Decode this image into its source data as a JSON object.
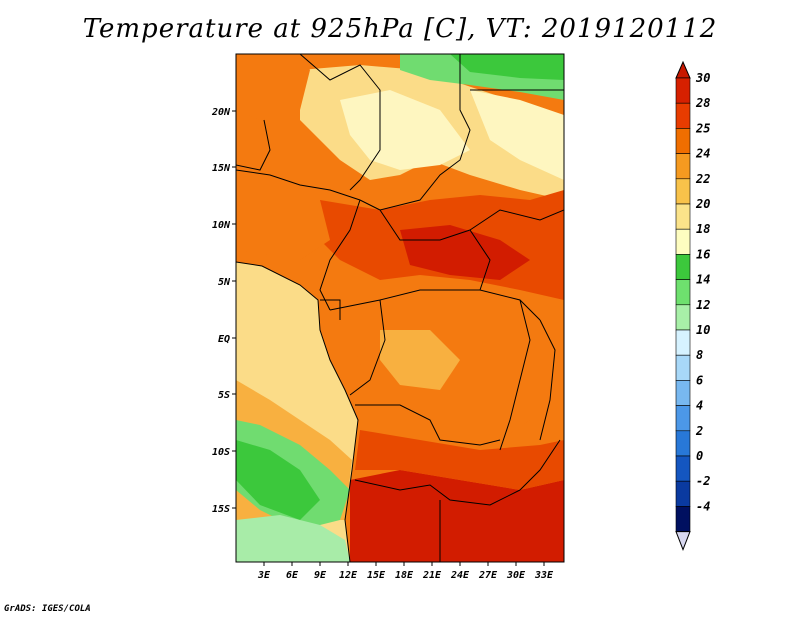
{
  "title": "Temperature at 925hPa [C], VT: 2019120112",
  "credit": "GrADS: IGES/COLA",
  "lat_labels": [
    "20N",
    "15N",
    "10N",
    "5N",
    "EQ",
    "5S",
    "10S",
    "15S"
  ],
  "lon_labels": [
    "3E",
    "6E",
    "9E",
    "12E",
    "15E",
    "18E",
    "21E",
    "24E",
    "27E",
    "30E",
    "33E"
  ],
  "colorbar": {
    "labels": [
      "30",
      "28",
      "25",
      "24",
      "22",
      "20",
      "18",
      "16",
      "14",
      "12",
      "10",
      "8",
      "6",
      "4",
      "2",
      "0",
      "-2",
      "-4"
    ],
    "colors": [
      "#d62000",
      "#e83c00",
      "#f06e00",
      "#f59a20",
      "#f8c24a",
      "#fbe38a",
      "#fefdc0",
      "#3cc83c",
      "#6ee06e",
      "#a8f0a8",
      "#d6f2ff",
      "#a8d8f8",
      "#78b8f0",
      "#4c98e8",
      "#2878d8",
      "#1456c0",
      "#0a3aa0",
      "#001060"
    ],
    "min_color": "#d8d8f0",
    "max_color": "#c81800"
  },
  "map": {
    "colors": {
      "hottest": "#d21c00",
      "hot": "#e84a00",
      "warm": "#f47a10",
      "mild": "#f8b040",
      "cool": "#fbdc88",
      "cooler": "#fef6c0",
      "green_dark": "#3cc83c",
      "green_mid": "#70dc70",
      "green_light": "#a8eca8",
      "border": "#000000"
    }
  }
}
